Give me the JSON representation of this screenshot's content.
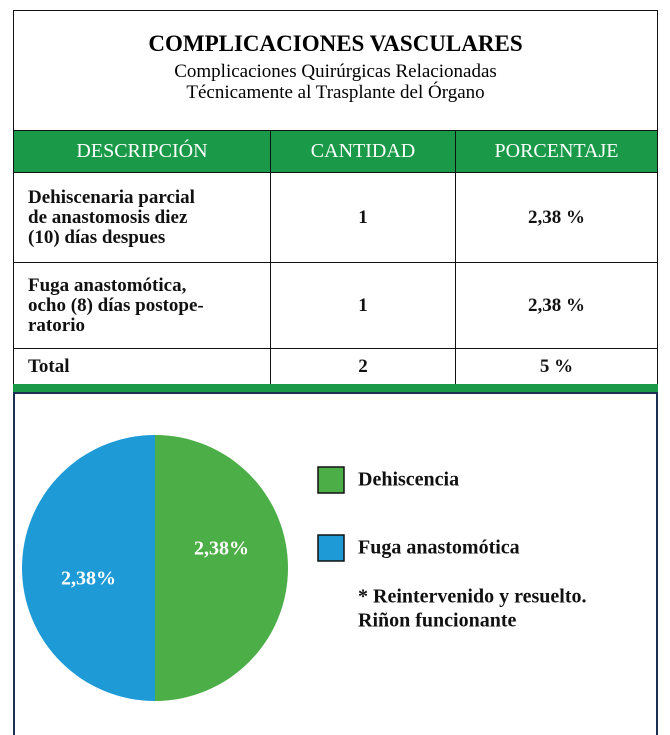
{
  "header": {
    "title": "COMPLICACIONES VASCULARES",
    "subtitle": [
      "Complicaciones Quirúrgicas Relacionadas",
      "Técnicamente al Trasplante del Órgano"
    ]
  },
  "table": {
    "columns": [
      "DESCRIPCIÓN",
      "CANTIDAD",
      "PORCENTAJE"
    ],
    "rows": [
      {
        "description": [
          "Dehiscenaria parcial",
          "de anastomosis diez",
          "(10) días despues"
        ],
        "cantidad": 1,
        "porcentaje": "2,38 %"
      },
      {
        "description": [
          "Fuga anastomótica,",
          "ocho (8) días postope-",
          "ratorio"
        ],
        "cantidad": 1,
        "porcentaje": "2,38 %"
      }
    ],
    "total": {
      "description": "Total",
      "cantidad": 2,
      "porcentaje": "5 %"
    }
  },
  "chart_data": {
    "type": "pie",
    "categories": [
      "Dehiscencia",
      "Fuga anastomótica"
    ],
    "values": [
      2.38,
      2.38
    ],
    "value_labels": [
      "2,38%",
      "2,38%"
    ],
    "colors": [
      "#4cae47",
      "#1e9ad6"
    ],
    "note": [
      "* Reintervenido y resuelto.",
      "Riñon funcionante"
    ]
  }
}
